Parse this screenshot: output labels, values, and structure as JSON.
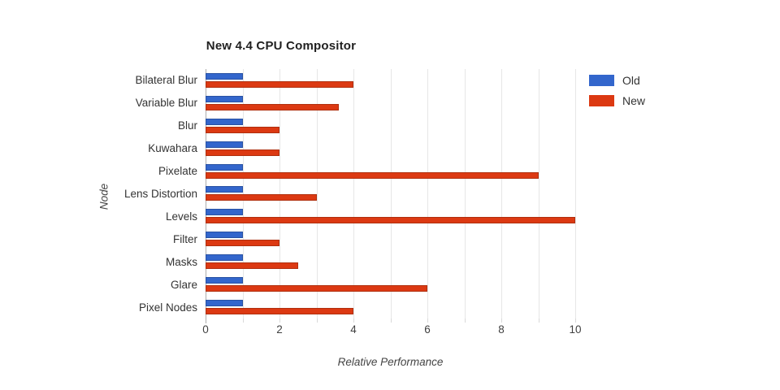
{
  "title": "New 4.4 CPU Compositor",
  "chart_data": {
    "type": "bar",
    "orientation": "horizontal",
    "title": "New 4.4 CPU Compositor",
    "categories": [
      "Bilateral Blur",
      "Variable Blur",
      "Blur",
      "Kuwahara",
      "Pixelate",
      "Lens Distortion",
      "Levels",
      "Filter",
      "Masks",
      "Glare",
      "Pixel Nodes"
    ],
    "series": [
      {
        "name": "Old",
        "color": "#3366CC",
        "border_color": "#2952A3",
        "values": [
          1,
          1,
          1,
          1,
          1,
          1,
          1,
          1,
          1,
          1,
          1
        ]
      },
      {
        "name": "New",
        "color": "#DC3912",
        "border_color": "#B02F0E",
        "values": [
          4,
          3.6,
          2,
          2,
          9,
          3,
          10,
          2,
          2.5,
          6,
          4
        ]
      }
    ],
    "xlabel": "Relative Performance",
    "ylabel": "Node",
    "xlim": [
      0,
      10
    ],
    "xticks": [
      0,
      2,
      4,
      6,
      8,
      10
    ],
    "gridline_step": 1,
    "grid": true,
    "legend_position": "top-right"
  },
  "colors": {
    "background": "#ffffff",
    "gridline": "#e6e6e6",
    "baseline": "#adadad",
    "title_text": "#212121",
    "axis_text": "#404040",
    "category_text": "#333333"
  }
}
